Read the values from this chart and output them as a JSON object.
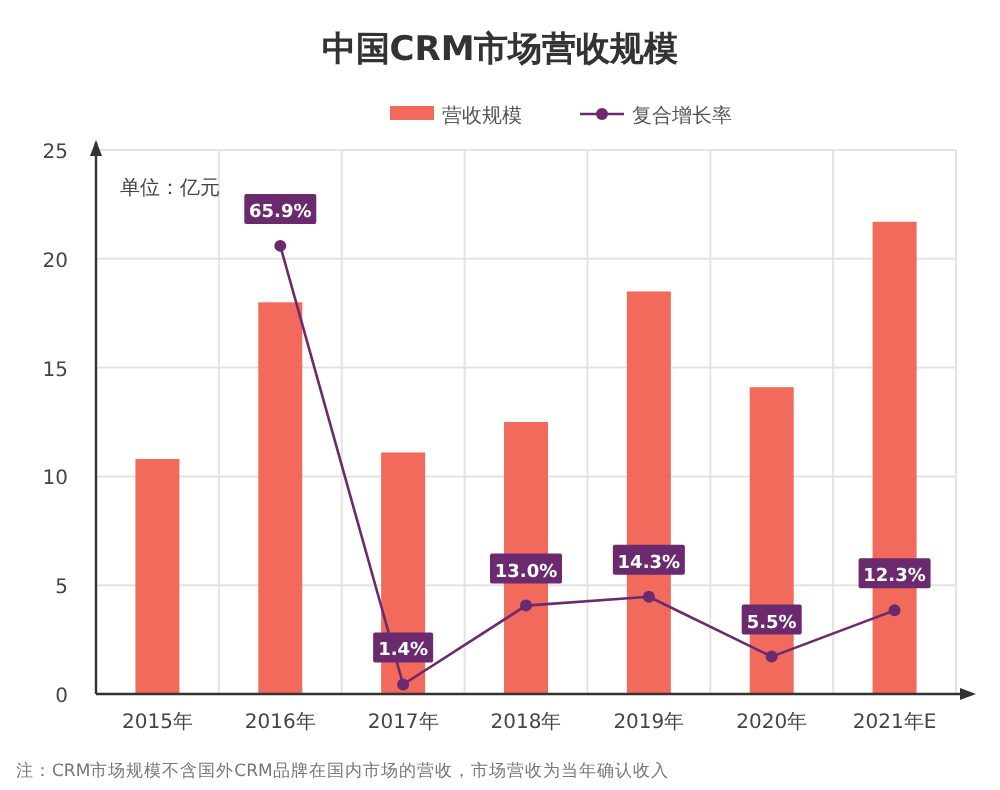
{
  "chart_data": {
    "type": "bar",
    "title": "中国CRM市场营收规模",
    "categories": [
      "2015年",
      "2016年",
      "2017年",
      "2018年",
      "2019年",
      "2020年",
      "2021年E"
    ],
    "series": [
      {
        "name": "营收规模",
        "color": "#f26a5c",
        "values": [
          10.8,
          18.0,
          11.1,
          12.5,
          18.5,
          14.1,
          21.7
        ]
      },
      {
        "name": "复合增长率",
        "type": "line",
        "axis": "y2",
        "color": "#6b2a6e",
        "marker": "circle",
        "values": [
          null,
          65.9,
          1.4,
          13.0,
          14.3,
          5.5,
          12.3
        ],
        "value_labels": [
          null,
          "65.9%",
          "1.4%",
          "13.0%",
          "14.3%",
          "5.5%",
          "12.3%"
        ]
      }
    ],
    "ylim": [
      0,
      25
    ],
    "yticks": [
      0,
      5,
      10,
      15,
      20,
      25
    ],
    "y2lim": [
      0,
      80
    ],
    "grid": true,
    "legend": "top",
    "annotations": [
      "单位：亿元",
      "注：CRM市场规模不含国外CRM品牌在国内市场的营收，市场营收为当年确认收入"
    ]
  }
}
